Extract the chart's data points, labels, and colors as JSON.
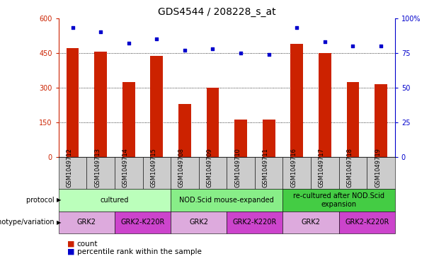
{
  "title": "GDS4544 / 208228_s_at",
  "samples": [
    "GSM1049712",
    "GSM1049713",
    "GSM1049714",
    "GSM1049715",
    "GSM1049708",
    "GSM1049709",
    "GSM1049710",
    "GSM1049711",
    "GSM1049716",
    "GSM1049717",
    "GSM1049718",
    "GSM1049719"
  ],
  "counts": [
    470,
    455,
    325,
    438,
    228,
    298,
    163,
    162,
    490,
    450,
    325,
    315
  ],
  "percentiles": [
    93,
    90,
    82,
    85,
    77,
    78,
    75,
    74,
    93,
    83,
    80,
    80
  ],
  "ylim_left": [
    0,
    600
  ],
  "ylim_right": [
    0,
    100
  ],
  "yticks_left": [
    0,
    150,
    300,
    450,
    600
  ],
  "ytick_labels_left": [
    "0",
    "150",
    "300",
    "450",
    "600"
  ],
  "yticks_right": [
    0,
    25,
    50,
    75,
    100
  ],
  "ytick_labels_right": [
    "0",
    "25",
    "50",
    "75",
    "100%"
  ],
  "bar_color": "#cc2200",
  "dot_color": "#0000cc",
  "gridline_color": "#000000",
  "protocol_colors": [
    "#bbffbb",
    "#88ee88",
    "#44cc44"
  ],
  "genotype_colors": [
    "#ddaadd",
    "#cc44cc"
  ],
  "protocol_groups": [
    {
      "label": "cultured",
      "start": 0,
      "end": 3,
      "color_idx": 0
    },
    {
      "label": "NOD.Scid mouse-expanded",
      "start": 4,
      "end": 7,
      "color_idx": 1
    },
    {
      "label": "re-cultured after NOD.Scid\nexpansion",
      "start": 8,
      "end": 11,
      "color_idx": 2
    }
  ],
  "genotype_groups": [
    {
      "label": "GRK2",
      "start": 0,
      "end": 1,
      "color_idx": 0
    },
    {
      "label": "GRK2-K220R",
      "start": 2,
      "end": 3,
      "color_idx": 1
    },
    {
      "label": "GRK2",
      "start": 4,
      "end": 5,
      "color_idx": 0
    },
    {
      "label": "GRK2-K220R",
      "start": 6,
      "end": 7,
      "color_idx": 1
    },
    {
      "label": "GRK2",
      "start": 8,
      "end": 9,
      "color_idx": 0
    },
    {
      "label": "GRK2-K220R",
      "start": 10,
      "end": 11,
      "color_idx": 1
    }
  ],
  "protocol_label": "protocol",
  "genotype_label": "genotype/variation",
  "legend_count_color": "#cc2200",
  "legend_dot_color": "#0000cc",
  "legend_count_text": "count",
  "legend_dot_text": "percentile rank within the sample",
  "sample_bg_color": "#cccccc",
  "bg_color": "#ffffff",
  "title_fontsize": 10,
  "tick_fontsize": 7,
  "sample_fontsize": 6,
  "row_fontsize": 7,
  "legend_fontsize": 7.5,
  "bar_width": 0.45
}
